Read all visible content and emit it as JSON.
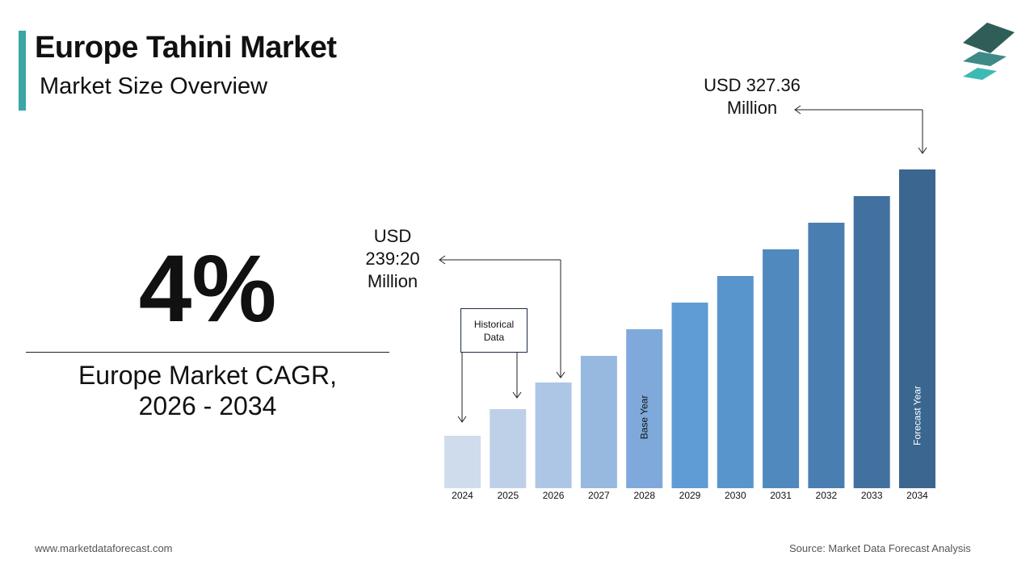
{
  "header": {
    "title": "Europe Tahini Market",
    "subtitle": "Market Size Overview"
  },
  "logo": {
    "icon": "stacked-layers-logo",
    "colors": [
      "#2f5e58",
      "#3f8a86",
      "#3dbab4"
    ]
  },
  "kpi": {
    "value": "4%",
    "label_line1": "Europe Market CAGR,",
    "label_line2": "2026 - 2034"
  },
  "chart_data": {
    "type": "bar",
    "categories": [
      "2024",
      "2025",
      "2026",
      "2027",
      "2028",
      "2029",
      "2030",
      "2031",
      "2032",
      "2033",
      "2034"
    ],
    "bar_levels": [
      1,
      2,
      3,
      4,
      5,
      6,
      7,
      8,
      9,
      10,
      11
    ],
    "labeled_values": {
      "2026": 239.2,
      "2034": 327.36
    },
    "unit": "USD Million",
    "colors": [
      "#cfdcec",
      "#bed0e8",
      "#adc6e5",
      "#97b9e0",
      "#7fa9da",
      "#5f9bd5",
      "#5895cc",
      "#5089bd",
      "#497eb0",
      "#42719f",
      "#3a6690"
    ],
    "bar_labels": {
      "2028": "Base Year",
      "2034": "Forecast Year"
    },
    "annotations": {
      "start": {
        "line1": "USD",
        "line2": "239:20",
        "line3": "Million"
      },
      "end": {
        "line1": "USD 327.36",
        "line2": "Million"
      },
      "historical": {
        "line1": "Historical",
        "line2": "Data"
      }
    },
    "grid": false
  },
  "footer": {
    "website": "www.marketdataforecast.com",
    "source": "Source: Market Data Forecast Analysis"
  }
}
